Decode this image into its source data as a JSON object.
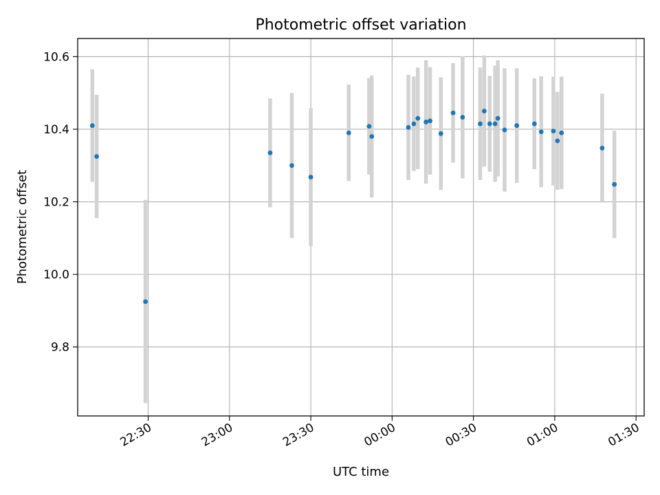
{
  "chart_data": {
    "type": "scatter",
    "title": "Photometric offset variation",
    "xlabel": "UTC time",
    "ylabel": "Photometric offset",
    "x_ticks": [
      "22:30",
      "23:00",
      "23:30",
      "00:00",
      "00:30",
      "01:00",
      "01:30"
    ],
    "y_ticks": [
      "9.8",
      "10.0",
      "10.2",
      "10.4",
      "10.6"
    ],
    "xlim_minutes_from_22_00": [
      4,
      213
    ],
    "ylim": [
      9.61,
      10.65
    ],
    "grid": true,
    "marker_color": "#1f77b4",
    "errorbar_color": "#d3d3d3",
    "points": [
      {
        "t": "22:09.4",
        "y": 10.41,
        "err": 0.155
      },
      {
        "t": "22:11.0",
        "y": 10.325,
        "err": 0.17
      },
      {
        "t": "22:29.0",
        "y": 9.925,
        "err": 0.28
      },
      {
        "t": "23:15.0",
        "y": 10.335,
        "err": 0.15
      },
      {
        "t": "23:23.0",
        "y": 10.3,
        "err": 0.2
      },
      {
        "t": "23:30.0",
        "y": 10.268,
        "err": 0.19
      },
      {
        "t": "23:44.0",
        "y": 10.39,
        "err": 0.133
      },
      {
        "t": "23:51.5",
        "y": 10.408,
        "err": 0.133
      },
      {
        "t": "23:52.5",
        "y": 10.38,
        "err": 0.168
      },
      {
        "t": "00:06.0",
        "y": 10.405,
        "err": 0.145
      },
      {
        "t": "00:08.0",
        "y": 10.415,
        "err": 0.13
      },
      {
        "t": "00:09.5",
        "y": 10.43,
        "err": 0.14
      },
      {
        "t": "00:12.5",
        "y": 10.42,
        "err": 0.17
      },
      {
        "t": "00:14.0",
        "y": 10.423,
        "err": 0.148
      },
      {
        "t": "00:18.0",
        "y": 10.388,
        "err": 0.155
      },
      {
        "t": "00:22.5",
        "y": 10.445,
        "err": 0.137
      },
      {
        "t": "00:26.0",
        "y": 10.433,
        "err": 0.168
      },
      {
        "t": "00:32.5",
        "y": 10.415,
        "err": 0.155
      },
      {
        "t": "00:34.0",
        "y": 10.45,
        "err": 0.153
      },
      {
        "t": "00:36.0",
        "y": 10.415,
        "err": 0.132
      },
      {
        "t": "00:38.0",
        "y": 10.415,
        "err": 0.16
      },
      {
        "t": "00:39.0",
        "y": 10.43,
        "err": 0.16
      },
      {
        "t": "00:41.5",
        "y": 10.398,
        "err": 0.17
      },
      {
        "t": "00:46.0",
        "y": 10.41,
        "err": 0.158
      },
      {
        "t": "00:52.5",
        "y": 10.415,
        "err": 0.125
      },
      {
        "t": "00:55.0",
        "y": 10.393,
        "err": 0.153
      },
      {
        "t": "00:59.5",
        "y": 10.395,
        "err": 0.15
      },
      {
        "t": "01:01.0",
        "y": 10.368,
        "err": 0.135
      },
      {
        "t": "01:02.5",
        "y": 10.39,
        "err": 0.155
      },
      {
        "t": "01:17.5",
        "y": 10.348,
        "err": 0.15
      },
      {
        "t": "01:22.0",
        "y": 10.248,
        "err": 0.148
      }
    ]
  }
}
